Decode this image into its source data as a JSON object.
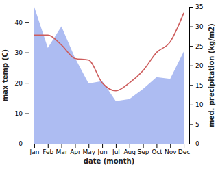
{
  "chart_data": {
    "type": "line",
    "x_label": "date (month)",
    "y_label": "max temp (C)",
    "y2_label": "med. precipitation (kg/m2)",
    "categories": [
      "Jan",
      "Feb",
      "Mar",
      "Apr",
      "May",
      "Jun",
      "Jul",
      "Aug",
      "Sep",
      "Oct",
      "Nov",
      "Dec"
    ],
    "series": [
      {
        "name": "max temp",
        "type": "line",
        "color": "#cd5c5c",
        "values": [
          35.7,
          35.7,
          32.5,
          28,
          27.5,
          20,
          17.4,
          20,
          24,
          30,
          33.5,
          43
        ]
      },
      {
        "name": "med. precipitation",
        "type": "area",
        "axis": "y2",
        "color": "#adbcf2",
        "values": [
          35,
          24.5,
          30,
          21.9,
          15.4,
          16,
          10.9,
          11.4,
          14,
          17,
          16.6,
          23.6
        ]
      }
    ],
    "ylim": [
      0,
      45
    ],
    "yticks": [
      0,
      10,
      20,
      30,
      40
    ],
    "y2lim": [
      0,
      35
    ],
    "y2ticks": [
      0,
      5,
      10,
      15,
      20,
      25,
      30,
      35
    ],
    "grid": false
  }
}
